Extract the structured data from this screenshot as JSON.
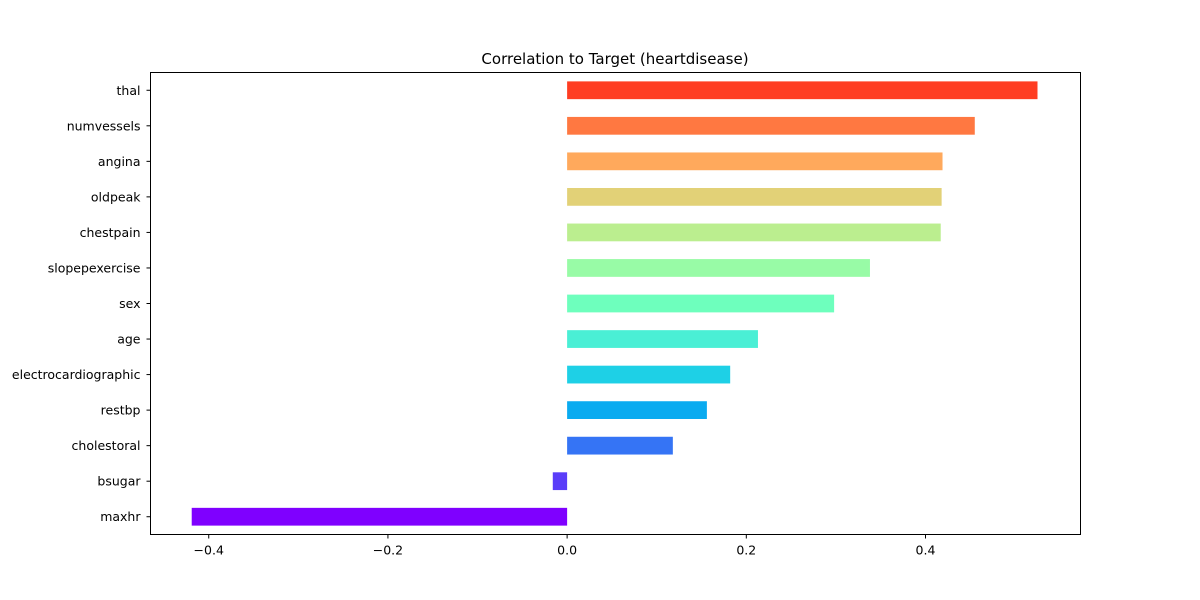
{
  "chart_data": {
    "type": "bar",
    "orientation": "horizontal",
    "title": "Correlation to Target (heartdisease)",
    "xlabel": "",
    "ylabel": "",
    "categories": [
      "thal",
      "numvessels",
      "angina",
      "oldpeak",
      "chestpain",
      "slopepexercise",
      "sex",
      "age",
      "electrocardiographic",
      "restbp",
      "cholestoral",
      "bsugar",
      "maxhr"
    ],
    "values": [
      0.525,
      0.455,
      0.419,
      0.418,
      0.417,
      0.338,
      0.298,
      0.213,
      0.182,
      0.156,
      0.118,
      -0.016,
      -0.419
    ],
    "colors": [
      "#ff3d22",
      "#ff7841",
      "#ffa95c",
      "#e2d177",
      "#bbee8f",
      "#98fba6",
      "#6effbd",
      "#4aefd5",
      "#1ed0e6",
      "#0aabf0",
      "#3574f5",
      "#5a3df9",
      "#7f00ff"
    ],
    "xlim": [
      -0.465,
      0.573
    ],
    "xticks": [
      -0.4,
      -0.2,
      0.0,
      0.2,
      0.4
    ],
    "xtick_labels": [
      "−0.4",
      "−0.2",
      "0.0",
      "0.2",
      "0.4"
    ],
    "grid": false,
    "legend": "none"
  }
}
